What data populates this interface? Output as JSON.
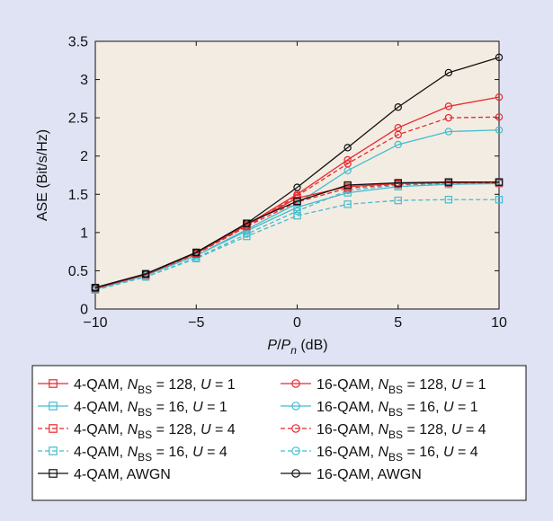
{
  "chart_data": {
    "type": "line",
    "xlabel": "P/P_n (dB)",
    "ylabel": "ASE (Bit/s/Hz)",
    "xlim": [
      -10,
      10
    ],
    "ylim": [
      0,
      3.5
    ],
    "xticks": [
      "−10",
      "−5",
      "0",
      "5",
      "10"
    ],
    "yticks": [
      "0",
      "0.5",
      "1",
      "1.5",
      "2",
      "2.5",
      "3",
      "3.5"
    ],
    "x": [
      -10,
      -7.5,
      -5,
      -2.5,
      0,
      2.5,
      5,
      7.5,
      10
    ],
    "grid": false,
    "plot_background": "#f3ece2",
    "legend_placement": "below plot, two columns",
    "series": [
      {
        "label": "4-QAM, N_BS = 128, U = 1",
        "color": "#e8282e",
        "style": "solid",
        "marker": "square",
        "values": [
          0.27,
          0.45,
          0.73,
          1.1,
          1.45,
          1.6,
          1.64,
          1.65,
          1.66
        ]
      },
      {
        "label": "16-QAM, N_BS = 128, U = 1",
        "color": "#e8282e",
        "style": "solid",
        "marker": "circle",
        "values": [
          0.27,
          0.45,
          0.73,
          1.1,
          1.5,
          1.95,
          2.37,
          2.65,
          2.77
        ]
      },
      {
        "label": "4-QAM, N_BS = 16, U = 1",
        "color": "#42bccf",
        "style": "solid",
        "marker": "square",
        "values": [
          0.26,
          0.44,
          0.7,
          1.02,
          1.33,
          1.52,
          1.6,
          1.63,
          1.64
        ]
      },
      {
        "label": "16-QAM, N_BS = 16, U = 1",
        "color": "#42bccf",
        "style": "solid",
        "marker": "circle",
        "values": [
          0.26,
          0.44,
          0.7,
          1.04,
          1.38,
          1.81,
          2.15,
          2.32,
          2.34
        ]
      },
      {
        "label": "4-QAM, N_BS = 128, U = 4",
        "color": "#e8282e",
        "style": "dashed",
        "marker": "square",
        "values": [
          0.27,
          0.45,
          0.72,
          1.08,
          1.4,
          1.58,
          1.63,
          1.65,
          1.65
        ]
      },
      {
        "label": "16-QAM, N_BS = 128, U = 4",
        "color": "#e8282e",
        "style": "dashed",
        "marker": "circle",
        "values": [
          0.27,
          0.45,
          0.72,
          1.08,
          1.48,
          1.9,
          2.28,
          2.5,
          2.51
        ]
      },
      {
        "label": "4-QAM, N_BS = 16, U = 4",
        "color": "#42bccf",
        "style": "dashed",
        "marker": "square",
        "values": [
          0.25,
          0.42,
          0.66,
          0.95,
          1.22,
          1.37,
          1.42,
          1.43,
          1.43
        ]
      },
      {
        "label": "16-QAM, N_BS = 16, U = 4",
        "color": "#42bccf",
        "style": "dashed",
        "marker": "circle",
        "values": [
          0.25,
          0.42,
          0.67,
          0.98,
          1.28,
          1.55,
          1.62,
          1.64,
          1.65
        ]
      },
      {
        "label": "4-QAM, AWGN",
        "color": "#111111",
        "style": "solid",
        "marker": "square",
        "values": [
          0.28,
          0.46,
          0.74,
          1.12,
          1.41,
          1.62,
          1.65,
          1.66,
          1.66
        ]
      },
      {
        "label": "16-QAM, AWGN",
        "color": "#111111",
        "style": "solid",
        "marker": "circle",
        "values": [
          0.28,
          0.46,
          0.74,
          1.12,
          1.59,
          2.11,
          2.64,
          3.09,
          3.29
        ]
      }
    ]
  },
  "legend": [
    {
      "pre": "4-QAM, ",
      "n": "N",
      "sub": "BS",
      "mid": " = 128, ",
      "u": "U",
      "post": " = 1"
    },
    {
      "pre": "16-QAM, ",
      "n": "N",
      "sub": "BS",
      "mid": " = 128, ",
      "u": "U",
      "post": " = 1"
    },
    {
      "pre": "4-QAM, ",
      "n": "N",
      "sub": "BS",
      "mid": " = 16, ",
      "u": "U",
      "post": " = 1"
    },
    {
      "pre": "16-QAM, ",
      "n": "N",
      "sub": "BS",
      "mid": " = 16, ",
      "u": "U",
      "post": " = 1"
    },
    {
      "pre": "4-QAM, ",
      "n": "N",
      "sub": "BS",
      "mid": " = 128, ",
      "u": "U",
      "post": " = 4"
    },
    {
      "pre": "16-QAM, ",
      "n": "N",
      "sub": "BS",
      "mid": " = 128, ",
      "u": "U",
      "post": " = 4"
    },
    {
      "pre": "4-QAM, ",
      "n": "N",
      "sub": "BS",
      "mid": " = 16, ",
      "u": "U",
      "post": " = 4"
    },
    {
      "pre": "16-QAM, ",
      "n": "N",
      "sub": "BS",
      "mid": " = 16, ",
      "u": "U",
      "post": " = 4"
    },
    {
      "pre": "4-QAM, AWGN",
      "n": "",
      "sub": "",
      "mid": "",
      "u": "",
      "post": ""
    },
    {
      "pre": "16-QAM, AWGN",
      "n": "",
      "sub": "",
      "mid": "",
      "u": "",
      "post": ""
    }
  ],
  "xlabel_parts": {
    "p": "P",
    "slash": "/",
    "pn": "P",
    "pn_sub": "n",
    "unit": " (dB)"
  }
}
